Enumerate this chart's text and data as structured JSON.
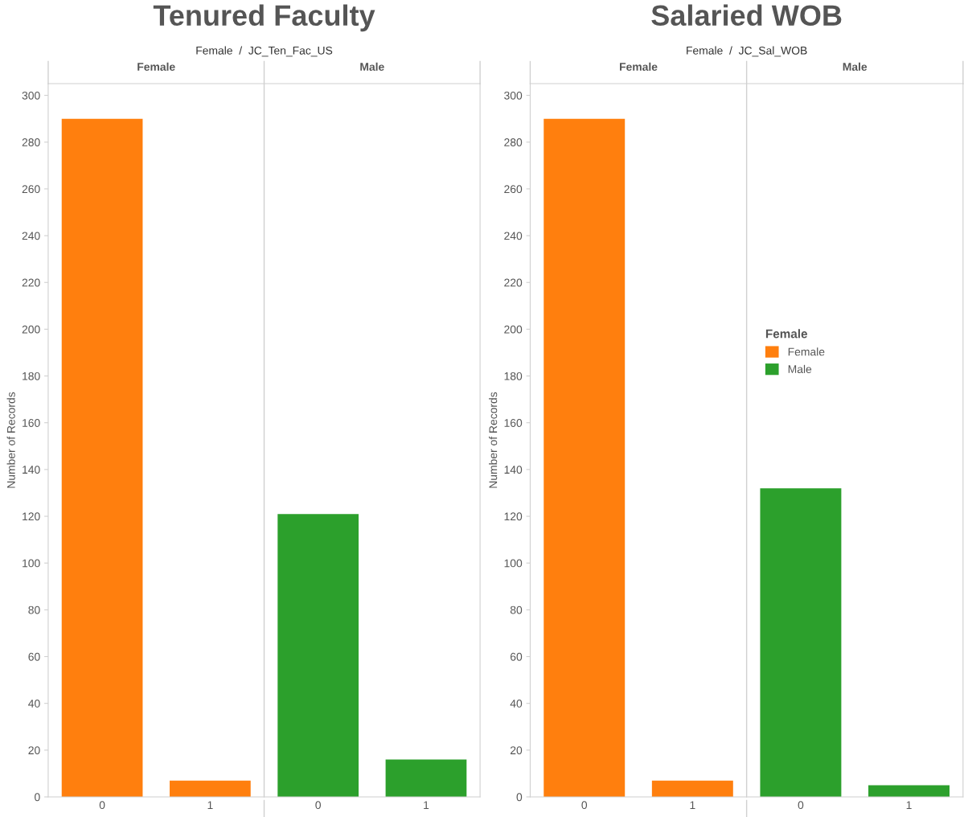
{
  "chart_data": [
    {
      "type": "bar",
      "title": "Tenured Faculty",
      "subtitle": "Female  /  JC_Ten_Fac_US",
      "ylabel": "Number of Records",
      "annotations": [
        "Female",
        "Male"
      ],
      "categories": [
        "0",
        "1",
        "0",
        "1"
      ],
      "series": [
        {
          "color": "#ff7f0e",
          "values": [
            290,
            7,
            null,
            null
          ]
        },
        {
          "color": "#2ca02c",
          "values": [
            null,
            null,
            121,
            16
          ]
        }
      ],
      "ylim": [
        0,
        305
      ],
      "yticks": [
        0,
        20,
        40,
        60,
        80,
        100,
        120,
        140,
        160,
        180,
        200,
        220,
        240,
        260,
        280,
        300
      ],
      "grid": false,
      "legend": false
    },
    {
      "type": "bar",
      "title": "Salaried WOB",
      "subtitle": "Female  /  JC_Sal_WOB",
      "ylabel": "Number of Records",
      "annotations": [
        "Female",
        "Male"
      ],
      "categories": [
        "0",
        "1",
        "0",
        "1"
      ],
      "series": [
        {
          "name": "Female",
          "color": "#ff7f0e",
          "values": [
            290,
            7,
            null,
            null
          ]
        },
        {
          "name": "Male",
          "color": "#2ca02c",
          "values": [
            null,
            null,
            132,
            5
          ]
        }
      ],
      "ylim": [
        0,
        305
      ],
      "yticks": [
        0,
        20,
        40,
        60,
        80,
        100,
        120,
        140,
        160,
        180,
        200,
        220,
        240,
        260,
        280,
        300
      ],
      "grid": false,
      "legend": "right",
      "legend_title": "Female"
    }
  ]
}
